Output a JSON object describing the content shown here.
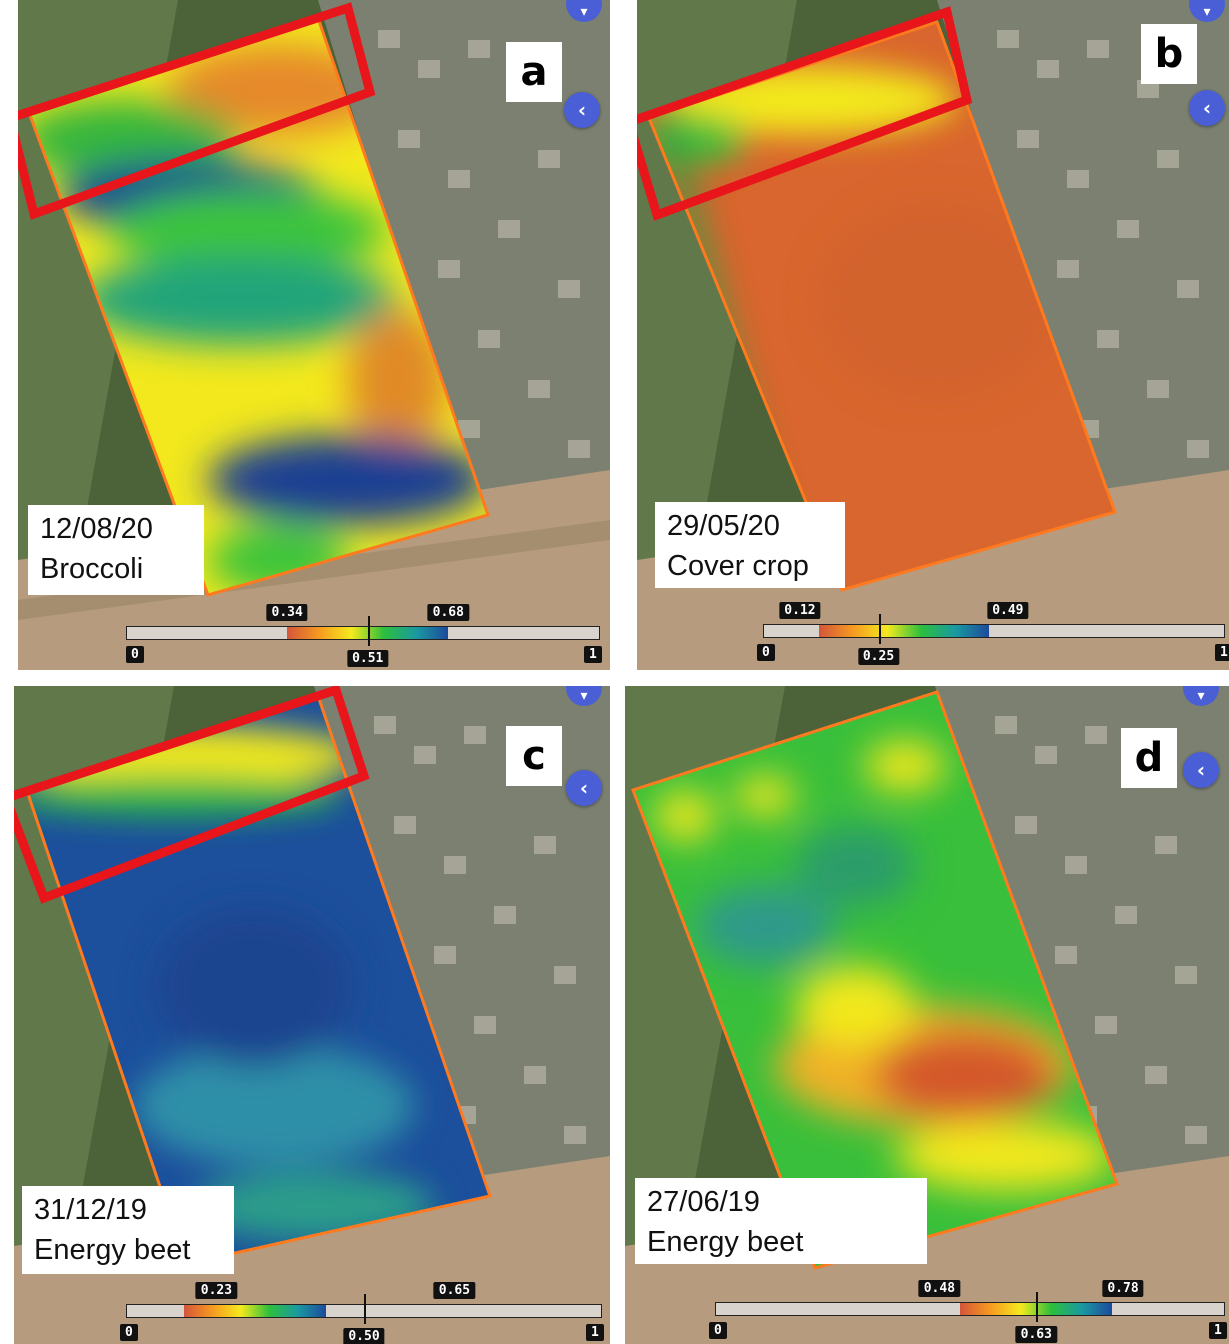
{
  "panels": [
    {
      "letter": "a",
      "date": "12/08/20",
      "crop": "Broccoli",
      "legend": {
        "min_label": "0",
        "max_label": "1",
        "low": "0.34",
        "high": "0.68",
        "mean": "0.51",
        "low_value": 0.34,
        "high_value": 0.68,
        "mean_value": 0.51
      },
      "highlight_box": true,
      "map_colors": [
        "#f4a21f",
        "#2fb840",
        "#123f93",
        "#f2e81d"
      ]
    },
    {
      "letter": "b",
      "date": "29/05/20",
      "crop": "Cover crop",
      "legend": {
        "min_label": "0",
        "max_label": "1",
        "low": "0.12",
        "high": "0.49",
        "mean": "0.25",
        "low_value": 0.12,
        "high_value": 0.49,
        "mean_value": 0.25
      },
      "highlight_box": true,
      "map_colors": [
        "#d9662e",
        "#f2e81d",
        "#3fbf3a"
      ]
    },
    {
      "letter": "c",
      "date": "31/12/19",
      "crop": "Energy beet",
      "legend": {
        "min_label": "0",
        "max_label": "1",
        "low": "0.23",
        "high": "0.65",
        "mean": "0.50",
        "low_value": 0.23,
        "high_value": 0.65,
        "mean_value": 0.5
      },
      "highlight_box": true,
      "map_colors": [
        "#1a4f9c",
        "#2f8aa8",
        "#f2e81d"
      ]
    },
    {
      "letter": "d",
      "date": "27/06/19",
      "crop": "Energy beet",
      "legend": {
        "min_label": "0",
        "max_label": "1",
        "low": "0.48",
        "high": "0.78",
        "mean": "0.63",
        "low_value": 0.48,
        "high_value": 0.78,
        "mean_value": 0.63
      },
      "highlight_box": false,
      "map_colors": [
        "#39bf3b",
        "#f2e81d",
        "#d9662e",
        "#2f9a9a"
      ]
    }
  ],
  "colors": {
    "highlight": "#e8151b",
    "field_outline": "#ff7a1e",
    "button": "#4a5fd6",
    "legend_gradient": [
      "#d4553a",
      "#f59a21",
      "#f5ea1e",
      "#2dbf3c",
      "#1a9aa0",
      "#1d4a9c"
    ]
  },
  "icons": [
    "back-chevron-icon",
    "cart-icon"
  ]
}
